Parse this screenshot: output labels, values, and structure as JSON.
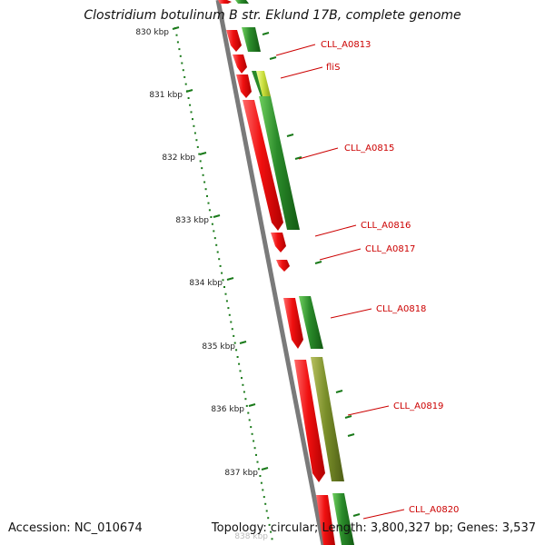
{
  "map": {
    "title": "Clostridium botulinum B str. Eklund 17B, complete genome",
    "accession_text": "Accession: NC_010674",
    "summary_text": "Topology: circular; Length: 3,800,327 bp; Genes: 3,537"
  },
  "scale": {
    "tick_labels": [
      "830 kbp",
      "831 kbp",
      "832 kbp",
      "833 kbp",
      "834 kbp",
      "835 kbp",
      "836 kbp",
      "837 kbp",
      "838 kbp"
    ]
  },
  "genes": {
    "labels": [
      "CLL_A0813",
      "fliS",
      "CLL_A0815",
      "CLL_A0816",
      "CLL_A0817",
      "CLL_A0818",
      "CLL_A0819",
      "CLL_A0820"
    ]
  },
  "colors": {
    "backbone": "#7a7a7a",
    "cds_forward": "#e81010",
    "gene_feature": "#2a8a2a",
    "olive_feature": "#7a8f2a",
    "highlight_feature": "#c8dd3a",
    "scale_ticks": "#1a7a1a",
    "label_text": "#cc0000"
  }
}
